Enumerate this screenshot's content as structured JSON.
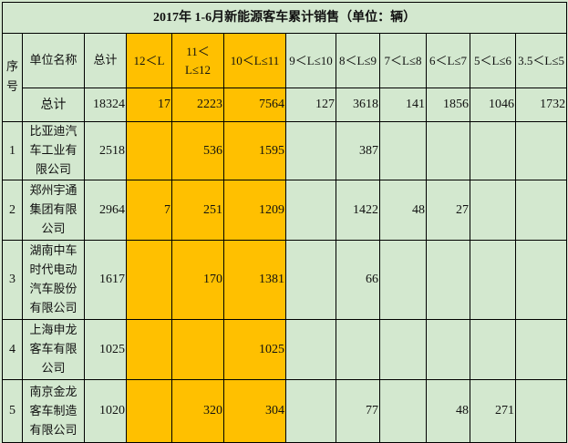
{
  "title": "2017年 1-6月新能源客车累计销售（单位：辆）",
  "headers": [
    "序号",
    "单位名称",
    "总计",
    "12＜L",
    "11＜L≤12",
    "10＜L≤11",
    "9＜L≤10",
    "8＜L≤9",
    "7＜L≤8",
    "6＜L≤7",
    "5＜L≤6",
    "3.5＜L≤5"
  ],
  "total_row": {
    "label": "总计",
    "values": [
      "18324",
      "17",
      "2223",
      "7564",
      "127",
      "3618",
      "141",
      "1856",
      "1046",
      "1732"
    ]
  },
  "rows": [
    {
      "no": "1",
      "name": "比亚迪汽车工业有限公司",
      "values": [
        "2518",
        "",
        "536",
        "1595",
        "",
        "387",
        "",
        "",
        "",
        ""
      ]
    },
    {
      "no": "2",
      "name": "郑州宇通集团有限公司",
      "values": [
        "2964",
        "7",
        "251",
        "1209",
        "",
        "1422",
        "48",
        "27",
        "",
        ""
      ]
    },
    {
      "no": "3",
      "name": "湖南中车时代电动汽车股份有限公司",
      "values": [
        "1617",
        "",
        "170",
        "1381",
        "",
        "66",
        "",
        "",
        "",
        ""
      ]
    },
    {
      "no": "4",
      "name": "上海申龙客车有限公司",
      "values": [
        "1025",
        "",
        "",
        "1025",
        "",
        "",
        "",
        "",
        "",
        ""
      ]
    },
    {
      "no": "5",
      "name": "南京金龙客车制造有限公司",
      "values": [
        "1020",
        "",
        "320",
        "304",
        "",
        "77",
        "",
        "48",
        "271",
        ""
      ]
    }
  ],
  "colors": {
    "background": "#d3e8cf",
    "highlight": "#ffc000"
  }
}
